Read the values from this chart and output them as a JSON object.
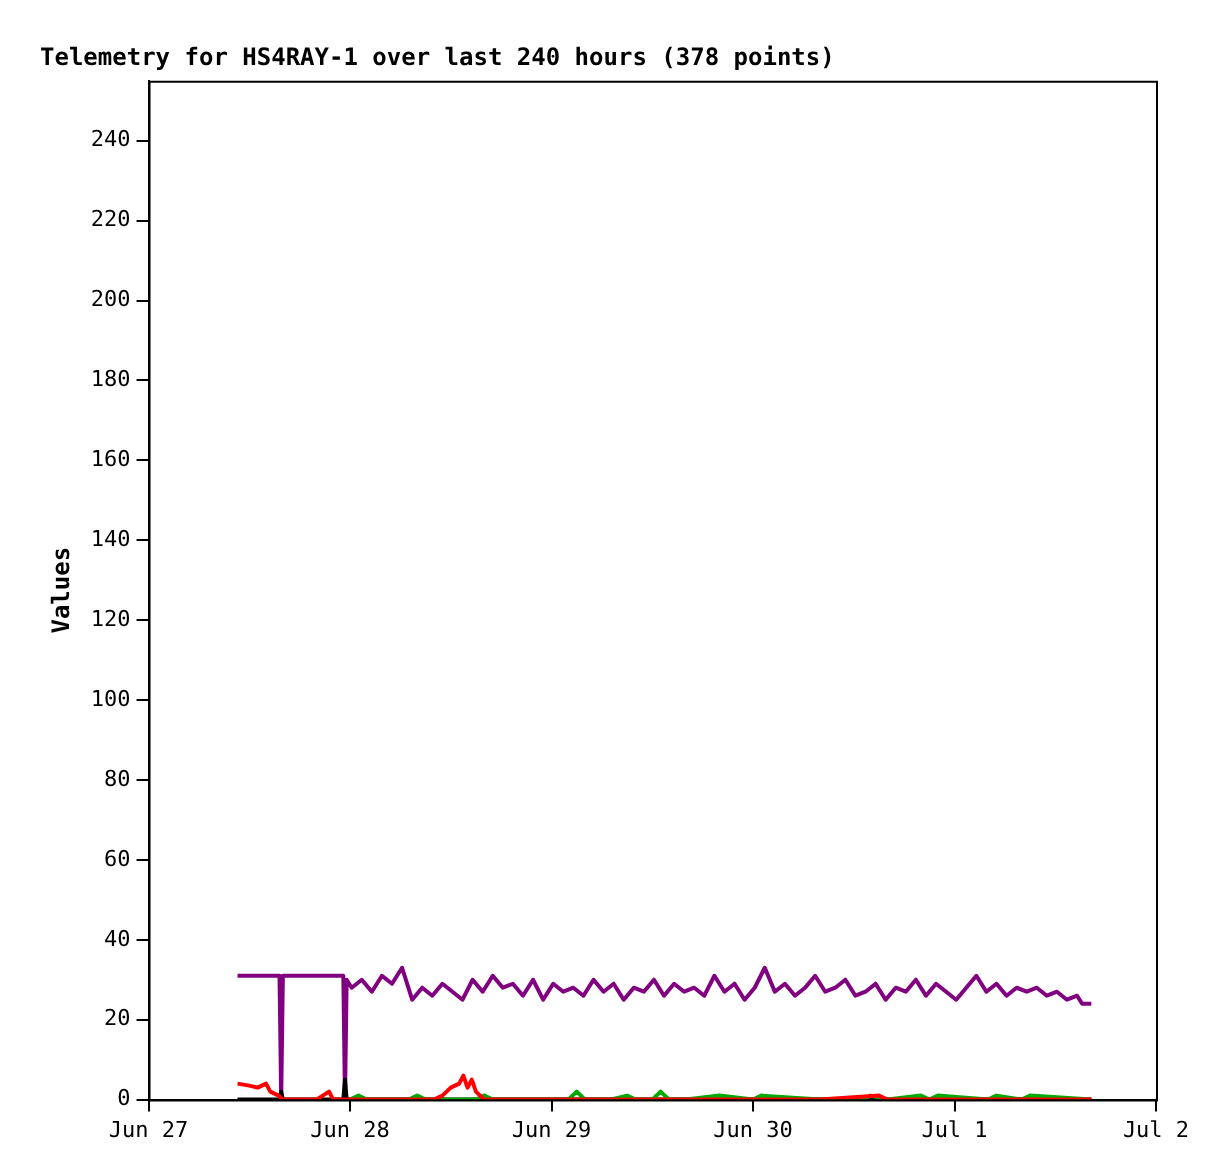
{
  "chart_data": {
    "type": "line",
    "title": "Telemetry for HS4RAY-1 over last 240 hours (378 points)",
    "ylabel": "Values",
    "xlim": [
      "--06-27",
      "--07-02"
    ],
    "xticks": [
      {
        "value": "--06-27",
        "label": "Jun 27"
      },
      {
        "value": "--06-28",
        "label": "Jun 28"
      },
      {
        "value": "--06-29",
        "label": "Jun 29"
      },
      {
        "value": "--06-30",
        "label": "Jun 30"
      },
      {
        "value": "--07-01",
        "label": "Jul 1"
      },
      {
        "value": "--07-02",
        "label": "Jul 2"
      }
    ],
    "ylim": [
      0,
      255
    ],
    "yticks": [
      0,
      20,
      40,
      60,
      80,
      100,
      120,
      140,
      160,
      180,
      200,
      220,
      240
    ],
    "grid": false,
    "legend": false,
    "marker": "none",
    "line_style": "solid",
    "series": [
      {
        "color": "#ff0000",
        "x": [
          "--06-27T10:36",
          "--06-27T12:00",
          "--06-27T13:00",
          "--06-27T14:00",
          "--06-27T14:30",
          "--06-27T15:30",
          "--06-27T16:00",
          "--06-27T20:00",
          "--06-27T21:30",
          "--06-27T22:00",
          "--06-28T00:00",
          "--06-28T10:00",
          "--06-28T11:00",
          "--06-28T12:00",
          "--06-28T13:00",
          "--06-28T13:30",
          "--06-28T14:00",
          "--06-28T14:30",
          "--06-28T15:00",
          "--06-28T16:00",
          "--06-30T08:00",
          "--06-30T15:00",
          "--06-30T16:00",
          "--07-01T16:18"
        ],
        "values": [
          4,
          3.5,
          3,
          4,
          2,
          1,
          0,
          0,
          2,
          0,
          0,
          0,
          1,
          3,
          4,
          6,
          3,
          5,
          2,
          0,
          0,
          1,
          0,
          0
        ]
      },
      {
        "color": "#00aa00",
        "x": [
          "--06-28T00:00",
          "--06-28T01:00",
          "--06-28T02:00",
          "--06-28T03:00",
          "--06-28T07:00",
          "--06-28T08:00",
          "--06-28T09:00",
          "--06-28T15:00",
          "--06-28T16:00",
          "--06-28T17:00",
          "--06-28T21:00",
          "--06-29T02:00",
          "--06-29T03:00",
          "--06-29T04:00",
          "--06-29T07:00",
          "--06-29T09:00",
          "--06-29T10:00",
          "--06-29T12:00",
          "--06-29T13:00",
          "--06-29T14:00",
          "--06-29T16:00",
          "--06-29T20:00",
          "--06-30T00:00",
          "--06-30T01:00",
          "--06-30T08:00",
          "--06-30T13:00",
          "--06-30T14:00",
          "--06-30T16:00",
          "--06-30T20:00",
          "--06-30T21:00",
          "--06-30T22:00",
          "--07-01T04:00",
          "--07-01T05:00",
          "--07-01T08:00",
          "--07-01T09:00",
          "--07-01T16:18"
        ],
        "values": [
          0,
          1,
          0,
          0,
          0,
          1,
          0,
          0,
          1,
          0,
          0,
          0,
          2,
          0,
          0,
          1,
          0,
          0,
          2,
          0,
          0,
          1,
          0,
          1,
          0,
          0,
          1,
          0,
          1,
          0,
          1,
          0,
          1,
          0,
          1,
          0
        ]
      },
      {
        "color": "#000000",
        "x": [
          "--06-27T10:36",
          "--06-27T15:36",
          "--06-27T15:48",
          "--06-27T16:00",
          "--06-27T23:12",
          "--06-27T23:24",
          "--06-27T23:36",
          "--07-01T16:18"
        ],
        "values": [
          0,
          0,
          2,
          0,
          0,
          5,
          0,
          0
        ]
      },
      {
        "color": "#800080",
        "x": [
          "--06-27T10:36",
          "--06-27T15:36",
          "--06-27T15:48",
          "--06-27T16:00",
          "--06-27T23:12",
          "--06-27T23:24",
          "--06-27T23:36",
          "--06-28T00:12",
          "--06-28T01:24",
          "--06-28T02:36",
          "--06-28T03:48",
          "--06-28T05:00",
          "--06-28T06:12",
          "--06-28T07:24",
          "--06-28T08:36",
          "--06-28T09:48",
          "--06-28T11:00",
          "--06-28T12:12",
          "--06-28T13:24",
          "--06-28T14:36",
          "--06-28T15:48",
          "--06-28T17:00",
          "--06-28T18:12",
          "--06-28T19:24",
          "--06-28T20:36",
          "--06-28T21:48",
          "--06-28T23:00",
          "--06-29T00:12",
          "--06-29T01:24",
          "--06-29T02:36",
          "--06-29T03:48",
          "--06-29T05:00",
          "--06-29T06:12",
          "--06-29T07:24",
          "--06-29T08:36",
          "--06-29T09:48",
          "--06-29T11:00",
          "--06-29T12:12",
          "--06-29T13:24",
          "--06-29T14:36",
          "--06-29T15:48",
          "--06-29T17:00",
          "--06-29T18:12",
          "--06-29T19:24",
          "--06-29T20:36",
          "--06-29T21:48",
          "--06-29T23:00",
          "--06-30T00:12",
          "--06-30T01:24",
          "--06-30T02:36",
          "--06-30T03:48",
          "--06-30T05:00",
          "--06-30T06:12",
          "--06-30T07:24",
          "--06-30T08:36",
          "--06-30T09:48",
          "--06-30T11:00",
          "--06-30T12:12",
          "--06-30T13:24",
          "--06-30T14:36",
          "--06-30T15:48",
          "--06-30T17:00",
          "--06-30T18:12",
          "--06-30T19:24",
          "--06-30T20:36",
          "--06-30T21:48",
          "--06-30T23:00",
          "--07-01T00:12",
          "--07-01T01:24",
          "--07-01T02:36",
          "--07-01T03:48",
          "--07-01T05:00",
          "--07-01T06:12",
          "--07-01T07:24",
          "--07-01T08:36",
          "--07-01T09:48",
          "--07-01T11:00",
          "--07-01T12:12",
          "--07-01T13:24",
          "--07-01T14:36",
          "--07-01T15:12",
          "--07-01T16:18"
        ],
        "values": [
          31,
          31,
          0,
          31,
          31,
          0,
          30,
          28,
          30,
          27,
          31,
          29,
          33,
          25,
          28,
          26,
          29,
          27,
          25,
          30,
          27,
          31,
          28,
          29,
          26,
          30,
          25,
          29,
          27,
          28,
          26,
          30,
          27,
          29,
          25,
          28,
          27,
          30,
          26,
          29,
          27,
          28,
          26,
          31,
          27,
          29,
          25,
          28,
          33,
          27,
          29,
          26,
          28,
          31,
          27,
          28,
          30,
          26,
          27,
          29,
          25,
          28,
          27,
          30,
          26,
          29,
          27,
          25,
          28,
          31,
          27,
          29,
          26,
          28,
          27,
          28,
          26,
          27,
          25,
          26,
          24,
          24
        ]
      }
    ]
  }
}
